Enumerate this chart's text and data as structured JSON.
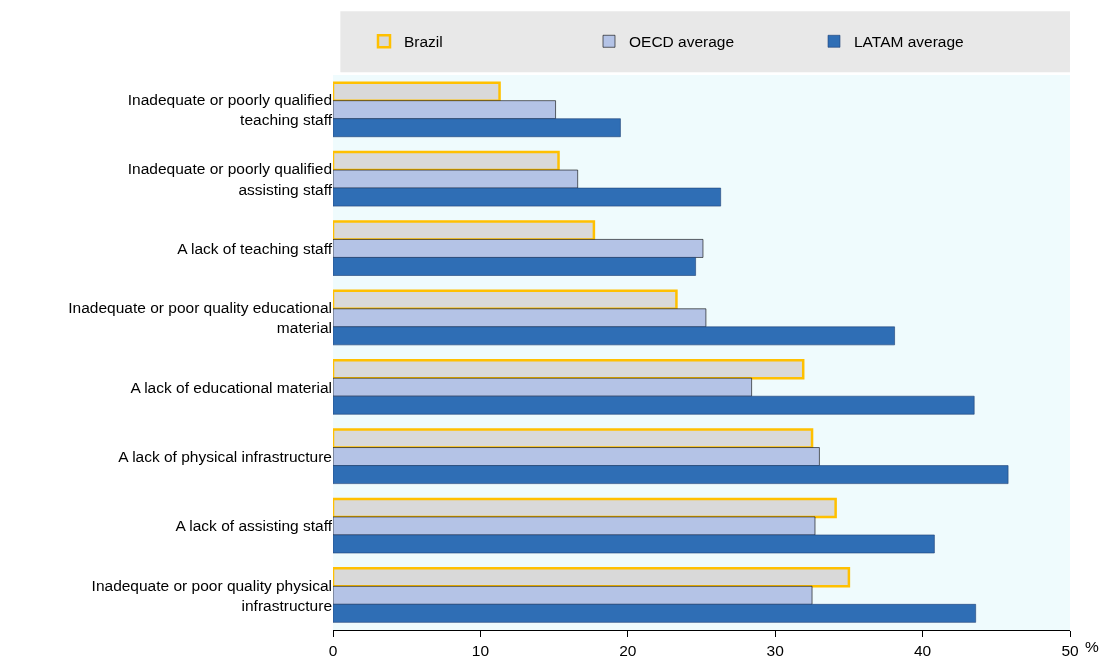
{
  "chart_data": {
    "type": "bar",
    "orientation": "horizontal",
    "xlabel": "%",
    "categories": [
      "Inadequate or poorly qualified teaching staff",
      "Inadequate or poorly qualified assisting staff",
      "A lack of teaching staff",
      "Inadequate or poor quality educational material",
      "A lack of educational material",
      "A lack of physical infrastructure",
      "A lack of assisting staff",
      "Inadequate or poor quality physical infrastructure"
    ],
    "series": [
      {
        "name": "Brazil",
        "color": "#d9d9d9",
        "values": [
          11.3,
          15.3,
          17.7,
          23.3,
          31.9,
          32.5,
          34.1,
          35.0
        ]
      },
      {
        "name": "OECD average",
        "color": "#b4c3e6",
        "values": [
          15.1,
          16.6,
          25.1,
          25.3,
          28.4,
          33.0,
          32.7,
          32.5
        ]
      },
      {
        "name": "LATAM average",
        "color": "#2f6eb5",
        "values": [
          19.5,
          26.3,
          24.6,
          38.1,
          43.5,
          45.8,
          40.8,
          43.6
        ]
      }
    ],
    "xlim": [
      0,
      50
    ],
    "xticks": [
      0,
      10,
      20,
      30,
      40,
      50
    ],
    "grid": false,
    "legend": "top"
  }
}
